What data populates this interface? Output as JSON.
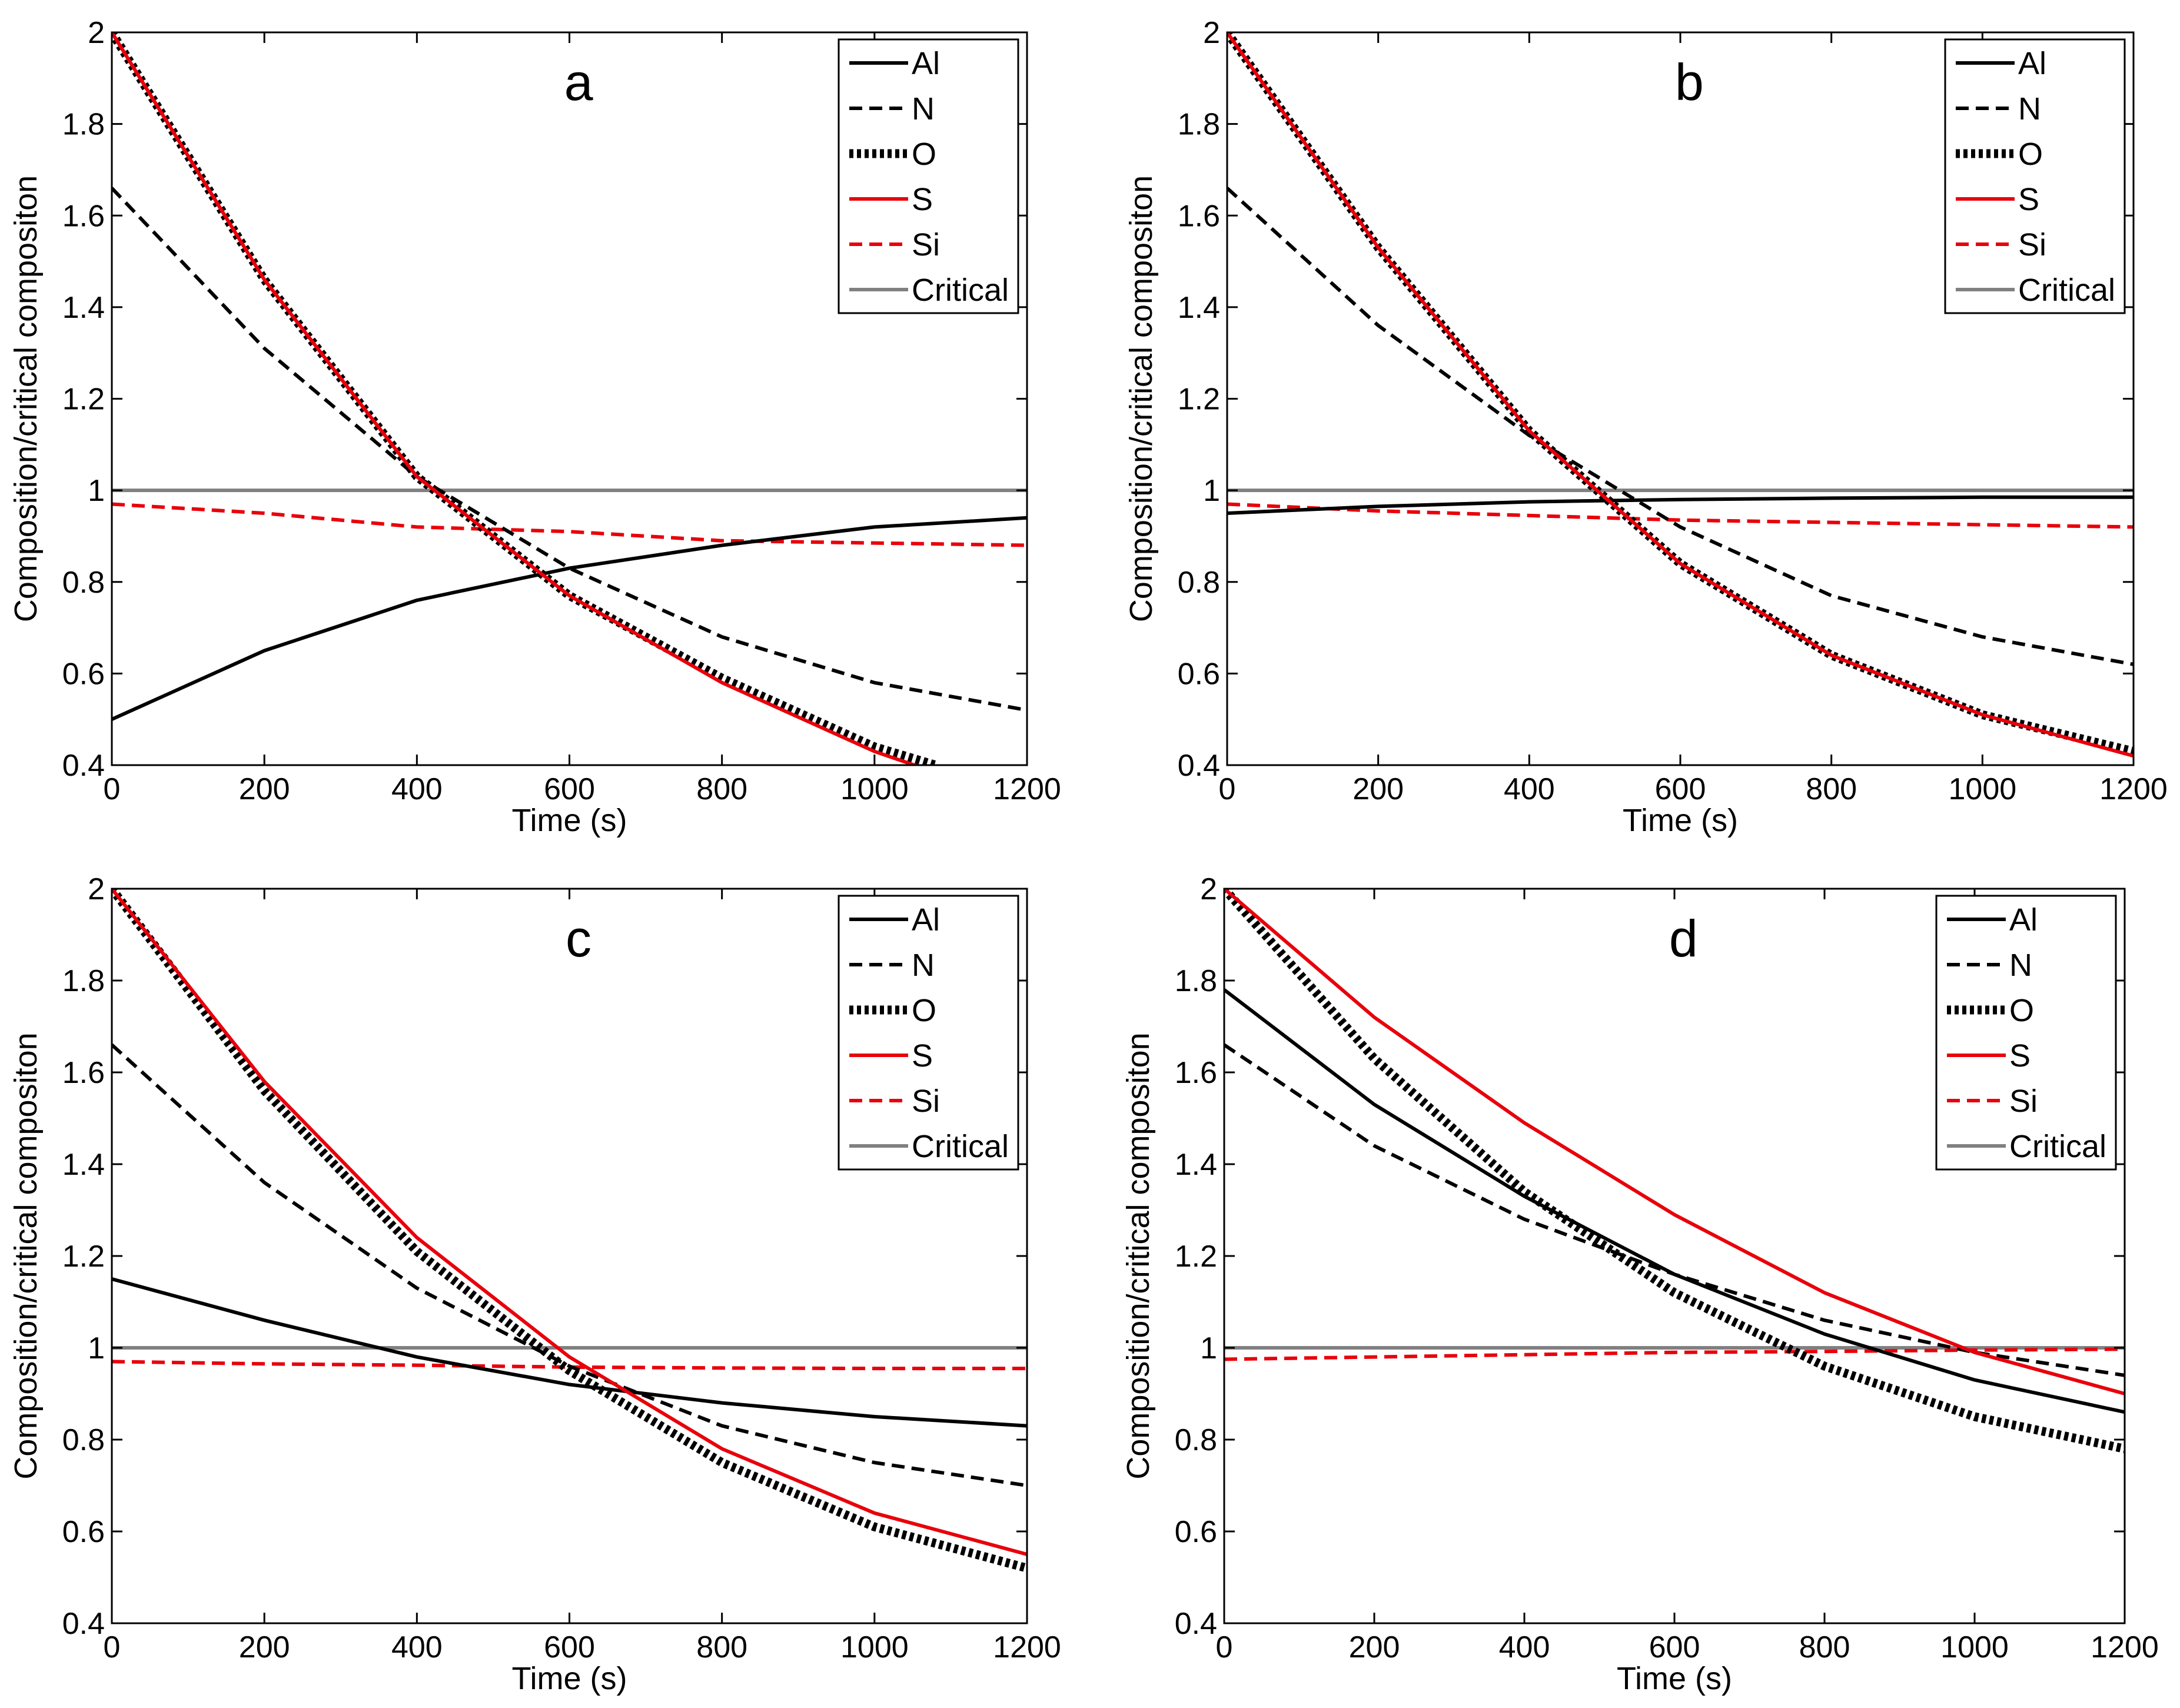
{
  "figure": {
    "panels": [
      "a",
      "b",
      "c",
      "d"
    ]
  },
  "chart_data": [
    {
      "panel_label": "a",
      "type": "line",
      "xlabel": "Time (s)",
      "ylabel": "Composition/critical compositon",
      "xlim": [
        0,
        1200
      ],
      "ylim": [
        0.4,
        2
      ],
      "xticks": [
        0,
        200,
        400,
        600,
        800,
        1000,
        1200
      ],
      "yticks": [
        0.4,
        0.6,
        0.8,
        1,
        1.2,
        1.4,
        1.6,
        1.8,
        2
      ],
      "legend": "top-right",
      "grid": false,
      "series": [
        {
          "name": "Al",
          "style": "solid",
          "color": "#000000",
          "x": [
            0,
            200,
            400,
            600,
            800,
            1000,
            1200
          ],
          "y": [
            0.5,
            0.65,
            0.76,
            0.83,
            0.88,
            0.92,
            0.94
          ]
        },
        {
          "name": "N",
          "style": "dashed",
          "color": "#000000",
          "x": [
            0,
            200,
            400,
            600,
            800,
            1000,
            1200
          ],
          "y": [
            1.66,
            1.31,
            1.03,
            0.83,
            0.68,
            0.58,
            0.52
          ]
        },
        {
          "name": "O",
          "style": "dotted",
          "color": "#000000",
          "x": [
            0,
            200,
            400,
            600,
            800,
            1000,
            1080
          ],
          "y": [
            2.0,
            1.46,
            1.03,
            0.77,
            0.59,
            0.44,
            0.4
          ]
        },
        {
          "name": "S",
          "style": "solid",
          "color": "#e8000b",
          "x": [
            0,
            200,
            400,
            600,
            800,
            1000,
            1070
          ],
          "y": [
            2.0,
            1.46,
            1.03,
            0.77,
            0.58,
            0.43,
            0.39
          ]
        },
        {
          "name": "Si",
          "style": "dashed",
          "color": "#e8000b",
          "x": [
            0,
            200,
            400,
            600,
            800,
            1000,
            1200
          ],
          "y": [
            0.97,
            0.95,
            0.92,
            0.91,
            0.89,
            0.885,
            0.88
          ]
        },
        {
          "name": "Critical",
          "style": "solid",
          "color": "#808080",
          "x": [
            0,
            1200
          ],
          "y": [
            1.0,
            1.0
          ]
        }
      ]
    },
    {
      "panel_label": "b",
      "type": "line",
      "xlabel": "Time (s)",
      "ylabel": "Composition/critical compositon",
      "xlim": [
        0,
        1200
      ],
      "ylim": [
        0.4,
        2
      ],
      "xticks": [
        0,
        200,
        400,
        600,
        800,
        1000,
        1200
      ],
      "yticks": [
        0.4,
        0.6,
        0.8,
        1,
        1.2,
        1.4,
        1.6,
        1.8,
        2
      ],
      "legend": "top-right",
      "grid": false,
      "series": [
        {
          "name": "Al",
          "style": "solid",
          "color": "#000000",
          "x": [
            0,
            200,
            400,
            600,
            800,
            1000,
            1200
          ],
          "y": [
            0.95,
            0.965,
            0.975,
            0.98,
            0.983,
            0.985,
            0.985
          ]
        },
        {
          "name": "N",
          "style": "dashed",
          "color": "#000000",
          "x": [
            0,
            200,
            400,
            600,
            800,
            1000,
            1200
          ],
          "y": [
            1.66,
            1.36,
            1.12,
            0.92,
            0.77,
            0.68,
            0.62
          ]
        },
        {
          "name": "O",
          "style": "dotted",
          "color": "#000000",
          "x": [
            0,
            200,
            400,
            600,
            800,
            1000,
            1200
          ],
          "y": [
            2.0,
            1.53,
            1.13,
            0.84,
            0.64,
            0.51,
            0.43
          ]
        },
        {
          "name": "S",
          "style": "solid",
          "color": "#e8000b",
          "x": [
            0,
            200,
            400,
            600,
            800,
            1000,
            1200
          ],
          "y": [
            2.0,
            1.53,
            1.13,
            0.84,
            0.64,
            0.51,
            0.42
          ]
        },
        {
          "name": "Si",
          "style": "dashed",
          "color": "#e8000b",
          "x": [
            0,
            200,
            400,
            600,
            800,
            1000,
            1200
          ],
          "y": [
            0.97,
            0.955,
            0.945,
            0.935,
            0.93,
            0.925,
            0.92
          ]
        },
        {
          "name": "Critical",
          "style": "solid",
          "color": "#808080",
          "x": [
            0,
            1200
          ],
          "y": [
            1.0,
            1.0
          ]
        }
      ]
    },
    {
      "panel_label": "c",
      "type": "line",
      "xlabel": "Time (s)",
      "ylabel": "Composition/critical compositon",
      "xlim": [
        0,
        1200
      ],
      "ylim": [
        0.4,
        2
      ],
      "xticks": [
        0,
        200,
        400,
        600,
        800,
        1000,
        1200
      ],
      "yticks": [
        0.4,
        0.6,
        0.8,
        1,
        1.2,
        1.4,
        1.6,
        1.8,
        2
      ],
      "legend": "top-right",
      "grid": false,
      "series": [
        {
          "name": "Al",
          "style": "solid",
          "color": "#000000",
          "x": [
            0,
            200,
            400,
            600,
            800,
            1000,
            1200
          ],
          "y": [
            1.15,
            1.06,
            0.98,
            0.92,
            0.88,
            0.85,
            0.83
          ]
        },
        {
          "name": "N",
          "style": "dashed",
          "color": "#000000",
          "x": [
            0,
            200,
            400,
            600,
            800,
            1000,
            1200
          ],
          "y": [
            1.66,
            1.36,
            1.13,
            0.96,
            0.83,
            0.75,
            0.7
          ]
        },
        {
          "name": "O",
          "style": "dotted",
          "color": "#000000",
          "x": [
            0,
            200,
            400,
            600,
            800,
            1000,
            1200
          ],
          "y": [
            2.0,
            1.56,
            1.21,
            0.95,
            0.75,
            0.61,
            0.52
          ]
        },
        {
          "name": "S",
          "style": "solid",
          "color": "#e8000b",
          "x": [
            0,
            200,
            400,
            600,
            800,
            1000,
            1200
          ],
          "y": [
            2.0,
            1.58,
            1.24,
            0.98,
            0.78,
            0.64,
            0.55
          ]
        },
        {
          "name": "Si",
          "style": "dashed",
          "color": "#e8000b",
          "x": [
            0,
            200,
            400,
            600,
            800,
            1000,
            1200
          ],
          "y": [
            0.97,
            0.965,
            0.962,
            0.958,
            0.956,
            0.955,
            0.955
          ]
        },
        {
          "name": "Critical",
          "style": "solid",
          "color": "#808080",
          "x": [
            0,
            1200
          ],
          "y": [
            1.0,
            1.0
          ]
        }
      ]
    },
    {
      "panel_label": "d",
      "type": "line",
      "xlabel": "Time (s)",
      "ylabel": "Composition/critical compositon",
      "xlim": [
        0,
        1200
      ],
      "ylim": [
        0.4,
        2
      ],
      "xticks": [
        0,
        200,
        400,
        600,
        800,
        1000,
        1200
      ],
      "yticks": [
        0.4,
        0.6,
        0.8,
        1,
        1.2,
        1.4,
        1.6,
        1.8,
        2
      ],
      "legend": "top-right",
      "grid": false,
      "series": [
        {
          "name": "Al",
          "style": "solid",
          "color": "#000000",
          "x": [
            0,
            200,
            400,
            600,
            800,
            1000,
            1200
          ],
          "y": [
            1.78,
            1.53,
            1.33,
            1.16,
            1.03,
            0.93,
            0.86
          ]
        },
        {
          "name": "N",
          "style": "dashed",
          "color": "#000000",
          "x": [
            0,
            200,
            400,
            600,
            800,
            1000,
            1200
          ],
          "y": [
            1.66,
            1.44,
            1.28,
            1.16,
            1.06,
            0.99,
            0.94
          ]
        },
        {
          "name": "O",
          "style": "dotted",
          "color": "#000000",
          "x": [
            0,
            200,
            400,
            600,
            800,
            1000,
            1200
          ],
          "y": [
            2.0,
            1.63,
            1.34,
            1.12,
            0.96,
            0.85,
            0.78
          ]
        },
        {
          "name": "S",
          "style": "solid",
          "color": "#e8000b",
          "x": [
            0,
            200,
            400,
            600,
            800,
            1000,
            1200
          ],
          "y": [
            2.0,
            1.72,
            1.49,
            1.29,
            1.12,
            0.99,
            0.9
          ]
        },
        {
          "name": "Si",
          "style": "dashed",
          "color": "#e8000b",
          "x": [
            0,
            200,
            400,
            600,
            800,
            1000,
            1200
          ],
          "y": [
            0.975,
            0.98,
            0.985,
            0.99,
            0.992,
            0.995,
            0.997
          ]
        },
        {
          "name": "Critical",
          "style": "solid",
          "color": "#808080",
          "x": [
            0,
            1200
          ],
          "y": [
            1.0,
            1.0
          ]
        }
      ]
    }
  ]
}
